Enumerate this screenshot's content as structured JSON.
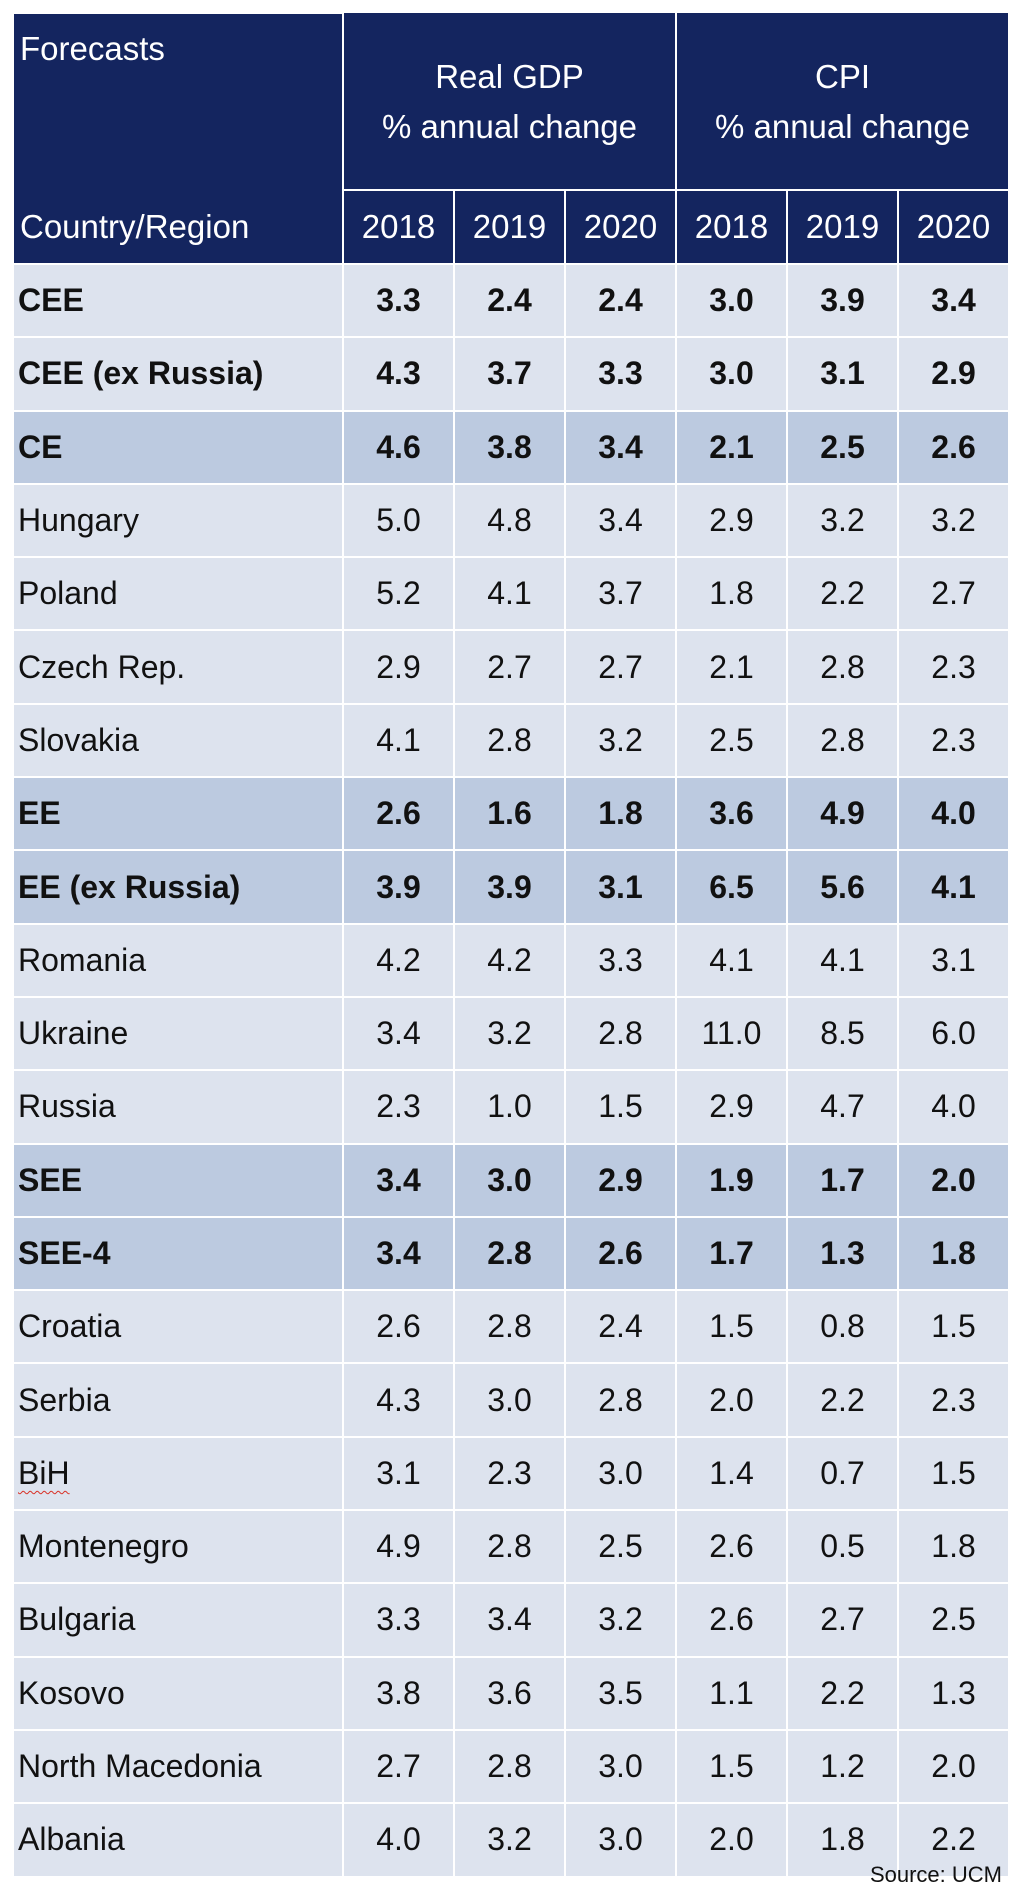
{
  "table": {
    "header_left_top": "Forecasts",
    "header_left_bottom": "Country/Region",
    "groups": [
      {
        "title": "Real GDP",
        "subtitle": "% annual change"
      },
      {
        "title": "CPI",
        "subtitle": "% annual change"
      }
    ],
    "years": [
      "2018",
      "2019",
      "2020",
      "2018",
      "2019",
      "2020"
    ]
  },
  "chart_data": {
    "type": "table",
    "columns": [
      "Real GDP 2018",
      "Real GDP 2019",
      "Real GDP 2020",
      "CPI 2018",
      "CPI 2019",
      "CPI 2020"
    ],
    "rows": [
      {
        "label": "CEE",
        "style": "agg-light",
        "values": [
          "3.3",
          "2.4",
          "2.4",
          "3.0",
          "3.9",
          "3.4"
        ]
      },
      {
        "label": "CEE (ex Russia)",
        "style": "agg-light",
        "values": [
          "4.3",
          "3.7",
          "3.3",
          "3.0",
          "3.1",
          "2.9"
        ]
      },
      {
        "label": "CE",
        "style": "agg",
        "values": [
          "4.6",
          "3.8",
          "3.4",
          "2.1",
          "2.5",
          "2.6"
        ]
      },
      {
        "label": "Hungary",
        "style": "cty",
        "values": [
          "5.0",
          "4.8",
          "3.4",
          "2.9",
          "3.2",
          "3.2"
        ]
      },
      {
        "label": "Poland",
        "style": "cty",
        "values": [
          "5.2",
          "4.1",
          "3.7",
          "1.8",
          "2.2",
          "2.7"
        ]
      },
      {
        "label": "Czech Rep.",
        "style": "cty",
        "values": [
          "2.9",
          "2.7",
          "2.7",
          "2.1",
          "2.8",
          "2.3"
        ]
      },
      {
        "label": "Slovakia",
        "style": "cty",
        "values": [
          "4.1",
          "2.8",
          "3.2",
          "2.5",
          "2.8",
          "2.3"
        ]
      },
      {
        "label": "EE",
        "style": "agg",
        "values": [
          "2.6",
          "1.6",
          "1.8",
          "3.6",
          "4.9",
          "4.0"
        ]
      },
      {
        "label": "EE (ex Russia)",
        "style": "agg",
        "values": [
          "3.9",
          "3.9",
          "3.1",
          "6.5",
          "5.6",
          "4.1"
        ]
      },
      {
        "label": "Romania",
        "style": "cty",
        "values": [
          "4.2",
          "4.2",
          "3.3",
          "4.1",
          "4.1",
          "3.1"
        ]
      },
      {
        "label": "Ukraine",
        "style": "cty",
        "values": [
          "3.4",
          "3.2",
          "2.8",
          "11.0",
          "8.5",
          "6.0"
        ]
      },
      {
        "label": "Russia",
        "style": "cty",
        "values": [
          "2.3",
          "1.0",
          "1.5",
          "2.9",
          "4.7",
          "4.0"
        ]
      },
      {
        "label": "SEE",
        "style": "agg",
        "values": [
          "3.4",
          "3.0",
          "2.9",
          "1.9",
          "1.7",
          "2.0"
        ]
      },
      {
        "label": "SEE-4",
        "style": "agg",
        "values": [
          "3.4",
          "2.8",
          "2.6",
          "1.7",
          "1.3",
          "1.8"
        ]
      },
      {
        "label": "Croatia",
        "style": "cty",
        "values": [
          "2.6",
          "2.8",
          "2.4",
          "1.5",
          "0.8",
          "1.5"
        ]
      },
      {
        "label": "Serbia",
        "style": "cty",
        "values": [
          "4.3",
          "3.0",
          "2.8",
          "2.0",
          "2.2",
          "2.3"
        ]
      },
      {
        "label": "BiH",
        "style": "cty",
        "spellcheck": true,
        "values": [
          "3.1",
          "2.3",
          "3.0",
          "1.4",
          "0.7",
          "1.5"
        ]
      },
      {
        "label": "Montenegro",
        "style": "cty",
        "values": [
          "4.9",
          "2.8",
          "2.5",
          "2.6",
          "0.5",
          "1.8"
        ]
      },
      {
        "label": "Bulgaria",
        "style": "cty",
        "values": [
          "3.3",
          "3.4",
          "3.2",
          "2.6",
          "2.7",
          "2.5"
        ]
      },
      {
        "label": "Kosovo",
        "style": "cty",
        "values": [
          "3.8",
          "3.6",
          "3.5",
          "1.1",
          "2.2",
          "1.3"
        ]
      },
      {
        "label": "North Macedonia",
        "style": "cty",
        "values": [
          "2.7",
          "2.8",
          "3.0",
          "1.5",
          "1.2",
          "2.0"
        ]
      },
      {
        "label": "Albania",
        "style": "cty",
        "values": [
          "4.0",
          "3.2",
          "3.0",
          "2.0",
          "1.8",
          "2.2"
        ]
      }
    ]
  },
  "source": "Source: UCM",
  "colors": {
    "header_bg": "#14255f",
    "aggregate_row": "#bccae0",
    "country_row": "#dde3ee"
  }
}
